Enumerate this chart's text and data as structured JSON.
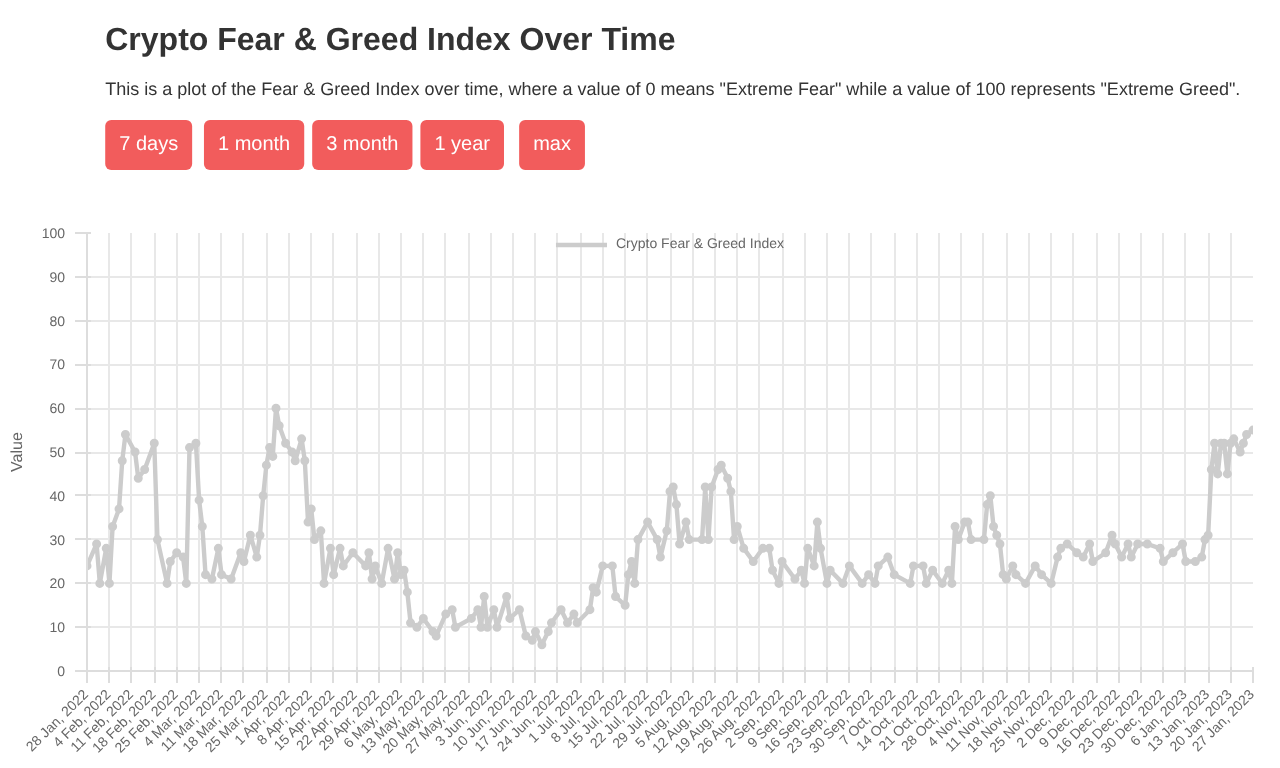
{
  "chart_data": {
    "type": "line",
    "title": "Crypto Fear & Greed Index Over Time",
    "subtitle": "This is a plot of the Fear & Greed Index over time, where a value of 0 means \"Extreme Fear\" while a value of 100 represents \"Extreme Greed\".",
    "annotations": [
      "7 days",
      "1 month",
      "3 month",
      "1 year",
      "max"
    ],
    "ylabel": "Value",
    "xlim": [
      "2022-01-28",
      "2023-01-27"
    ],
    "ylim": [
      0,
      100
    ],
    "yticks": [
      0,
      10,
      20,
      30,
      40,
      50,
      60,
      70,
      80,
      90,
      100
    ],
    "xticks": [
      {
        "value": "2022-01-28",
        "label": "28 Jan, 2022"
      },
      {
        "value": "2022-02-04",
        "label": "4 Feb, 2022"
      },
      {
        "value": "2022-02-11",
        "label": "11 Feb, 2022"
      },
      {
        "value": "2022-02-18",
        "label": "18 Feb, 2022"
      },
      {
        "value": "2022-02-25",
        "label": "25 Feb, 2022"
      },
      {
        "value": "2022-03-04",
        "label": "4 Mar, 2022"
      },
      {
        "value": "2022-03-11",
        "label": "11 Mar, 2022"
      },
      {
        "value": "2022-03-18",
        "label": "18 Mar, 2022"
      },
      {
        "value": "2022-03-25",
        "label": "25 Mar, 2022"
      },
      {
        "value": "2022-04-01",
        "label": "1 Apr, 2022"
      },
      {
        "value": "2022-04-08",
        "label": "8 Apr, 2022"
      },
      {
        "value": "2022-04-15",
        "label": "15 Apr, 2022"
      },
      {
        "value": "2022-04-22",
        "label": "22 Apr, 2022"
      },
      {
        "value": "2022-04-29",
        "label": "29 Apr, 2022"
      },
      {
        "value": "2022-05-06",
        "label": "6 May, 2022"
      },
      {
        "value": "2022-05-13",
        "label": "13 May, 2022"
      },
      {
        "value": "2022-05-20",
        "label": "20 May, 2022"
      },
      {
        "value": "2022-05-27",
        "label": "27 May, 2022"
      },
      {
        "value": "2022-06-03",
        "label": "3 Jun, 2022"
      },
      {
        "value": "2022-06-10",
        "label": "10 Jun, 2022"
      },
      {
        "value": "2022-06-17",
        "label": "17 Jun, 2022"
      },
      {
        "value": "2022-06-24",
        "label": "24 Jun, 2022"
      },
      {
        "value": "2022-07-01",
        "label": "1 Jul, 2022"
      },
      {
        "value": "2022-07-08",
        "label": "8 Jul, 2022"
      },
      {
        "value": "2022-07-15",
        "label": "15 Jul, 2022"
      },
      {
        "value": "2022-07-22",
        "label": "22 Jul, 2022"
      },
      {
        "value": "2022-07-29",
        "label": "29 Jul, 2022"
      },
      {
        "value": "2022-08-05",
        "label": "5 Aug, 2022"
      },
      {
        "value": "2022-08-12",
        "label": "12 Aug, 2022"
      },
      {
        "value": "2022-08-19",
        "label": "19 Aug, 2022"
      },
      {
        "value": "2022-08-26",
        "label": "26 Aug, 2022"
      },
      {
        "value": "2022-09-02",
        "label": "2 Sep, 2022"
      },
      {
        "value": "2022-09-09",
        "label": "9 Sep, 2022"
      },
      {
        "value": "2022-09-16",
        "label": "16 Sep, 2022"
      },
      {
        "value": "2022-09-23",
        "label": "23 Sep, 2022"
      },
      {
        "value": "2022-09-30",
        "label": "30 Sep, 2022"
      },
      {
        "value": "2022-10-07",
        "label": "7 Oct, 2022"
      },
      {
        "value": "2022-10-14",
        "label": "14 Oct, 2022"
      },
      {
        "value": "2022-10-21",
        "label": "21 Oct, 2022"
      },
      {
        "value": "2022-10-28",
        "label": "28 Oct, 2022"
      },
      {
        "value": "2022-11-04",
        "label": "4 Nov, 2022"
      },
      {
        "value": "2022-11-11",
        "label": "11 Nov, 2022"
      },
      {
        "value": "2022-11-18",
        "label": "18 Nov, 2022"
      },
      {
        "value": "2022-11-25",
        "label": "25 Nov, 2022"
      },
      {
        "value": "2022-12-02",
        "label": "2 Dec, 2022"
      },
      {
        "value": "2022-12-09",
        "label": "9 Dec, 2022"
      },
      {
        "value": "2022-12-16",
        "label": "16 Dec, 2022"
      },
      {
        "value": "2022-12-23",
        "label": "23 Dec, 2022"
      },
      {
        "value": "2022-12-30",
        "label": "30 Dec, 2022"
      },
      {
        "value": "2023-01-06",
        "label": "6 Jan, 2023"
      },
      {
        "value": "2023-01-13",
        "label": "13 Jan, 2023"
      },
      {
        "value": "2023-01-20",
        "label": "20 Jan, 2023"
      },
      {
        "value": "2023-01-27",
        "label": "27 Jan, 2023"
      }
    ],
    "grid": true,
    "legend": "top",
    "marker": "circle",
    "line_style": "solid",
    "series": [
      {
        "name": "Crypto Fear & Greed Index",
        "color": "#cccccc",
        "x": [
          "2022-01-28",
          "2022-01-31",
          "2022-02-01",
          "2022-02-03",
          "2022-02-04",
          "2022-02-05",
          "2022-02-07",
          "2022-02-08",
          "2022-02-09",
          "2022-02-12",
          "2022-02-13",
          "2022-02-15",
          "2022-02-18",
          "2022-02-19",
          "2022-02-22",
          "2022-02-23",
          "2022-02-25",
          "2022-02-27",
          "2022-02-28",
          "2022-03-01",
          "2022-03-03",
          "2022-03-04",
          "2022-03-05",
          "2022-03-06",
          "2022-03-08",
          "2022-03-10",
          "2022-03-11",
          "2022-03-14",
          "2022-03-17",
          "2022-03-18",
          "2022-03-20",
          "2022-03-22",
          "2022-03-23",
          "2022-03-24",
          "2022-03-25",
          "2022-03-26",
          "2022-03-27",
          "2022-03-28",
          "2022-03-29",
          "2022-03-31",
          "2022-04-02",
          "2022-04-03",
          "2022-04-05",
          "2022-04-06",
          "2022-04-07",
          "2022-04-08",
          "2022-04-09",
          "2022-04-11",
          "2022-04-12",
          "2022-04-14",
          "2022-04-15",
          "2022-04-17",
          "2022-04-18",
          "2022-04-21",
          "2022-04-25",
          "2022-04-26",
          "2022-04-27",
          "2022-04-28",
          "2022-04-30",
          "2022-05-02",
          "2022-05-04",
          "2022-05-05",
          "2022-05-06",
          "2022-05-07",
          "2022-05-08",
          "2022-05-09",
          "2022-05-11",
          "2022-05-13",
          "2022-05-16",
          "2022-05-17",
          "2022-05-20",
          "2022-05-22",
          "2022-05-23",
          "2022-05-28",
          "2022-05-30",
          "2022-05-31",
          "2022-06-01",
          "2022-06-02",
          "2022-06-04",
          "2022-06-05",
          "2022-06-08",
          "2022-06-09",
          "2022-06-12",
          "2022-06-14",
          "2022-06-16",
          "2022-06-17",
          "2022-06-19",
          "2022-06-21",
          "2022-06-22",
          "2022-06-25",
          "2022-06-27",
          "2022-06-29",
          "2022-06-30",
          "2022-07-04",
          "2022-07-05",
          "2022-07-06",
          "2022-07-08",
          "2022-07-11",
          "2022-07-12",
          "2022-07-15",
          "2022-07-16",
          "2022-07-17",
          "2022-07-18",
          "2022-07-19",
          "2022-07-22",
          "2022-07-25",
          "2022-07-26",
          "2022-07-28",
          "2022-07-29",
          "2022-07-30",
          "2022-07-31",
          "2022-08-01",
          "2022-08-03",
          "2022-08-04",
          "2022-08-08",
          "2022-08-09",
          "2022-08-10",
          "2022-08-11",
          "2022-08-13",
          "2022-08-14",
          "2022-08-16",
          "2022-08-17",
          "2022-08-18",
          "2022-08-19",
          "2022-08-21",
          "2022-08-24",
          "2022-08-27",
          "2022-08-29",
          "2022-08-30",
          "2022-09-01",
          "2022-09-02",
          "2022-09-06",
          "2022-09-08",
          "2022-09-09",
          "2022-09-10",
          "2022-09-12",
          "2022-09-13",
          "2022-09-14",
          "2022-09-16",
          "2022-09-17",
          "2022-09-21",
          "2022-09-23",
          "2022-09-27",
          "2022-09-29",
          "2022-10-01",
          "2022-10-02",
          "2022-10-05",
          "2022-10-07",
          "2022-10-12",
          "2022-10-13",
          "2022-10-16",
          "2022-10-17",
          "2022-10-19",
          "2022-10-22",
          "2022-10-24",
          "2022-10-25",
          "2022-10-26",
          "2022-10-27",
          "2022-10-29",
          "2022-10-30",
          "2022-10-31",
          "2022-11-04",
          "2022-11-05",
          "2022-11-06",
          "2022-11-07",
          "2022-11-08",
          "2022-11-09",
          "2022-11-10",
          "2022-11-11",
          "2022-11-13",
          "2022-11-14",
          "2022-11-17",
          "2022-11-20",
          "2022-11-22",
          "2022-11-25",
          "2022-11-27",
          "2022-11-28",
          "2022-11-30",
          "2022-12-03",
          "2022-12-05",
          "2022-12-07",
          "2022-12-08",
          "2022-12-12",
          "2022-12-14",
          "2022-12-15",
          "2022-12-17",
          "2022-12-19",
          "2022-12-20",
          "2022-12-22",
          "2022-12-25",
          "2022-12-29",
          "2022-12-30",
          "2023-01-02",
          "2023-01-05",
          "2023-01-06",
          "2023-01-09",
          "2023-01-11",
          "2023-01-12",
          "2023-01-13",
          "2023-01-14",
          "2023-01-15",
          "2023-01-16",
          "2023-01-17",
          "2023-01-18",
          "2023-01-19",
          "2023-01-20",
          "2023-01-21",
          "2023-01-23",
          "2023-01-24",
          "2023-01-25",
          "2023-01-27"
        ],
        "values": [
          24,
          29,
          20,
          28,
          20,
          33,
          37,
          48,
          54,
          50,
          44,
          46,
          52,
          30,
          20,
          25,
          27,
          26,
          20,
          51,
          52,
          39,
          33,
          22,
          21,
          28,
          22,
          21,
          27,
          25,
          31,
          26,
          31,
          40,
          47,
          51,
          49,
          60,
          56,
          52,
          50,
          48,
          53,
          48,
          34,
          37,
          30,
          32,
          20,
          28,
          22,
          28,
          24,
          27,
          24,
          27,
          21,
          24,
          20,
          28,
          21,
          27,
          22,
          23,
          18,
          11,
          10,
          12,
          9,
          8,
          13,
          14,
          10,
          12,
          14,
          10,
          17,
          10,
          14,
          10,
          17,
          12,
          14,
          8,
          7,
          9,
          6,
          9,
          11,
          14,
          11,
          13,
          11,
          14,
          19,
          18,
          24,
          24,
          17,
          15,
          22,
          25,
          20,
          30,
          34,
          30,
          26,
          32,
          41,
          42,
          38,
          29,
          34,
          30,
          30,
          42,
          30,
          42,
          46,
          47,
          44,
          41,
          30,
          33,
          28,
          25,
          28,
          28,
          23,
          20,
          25,
          21,
          23,
          20,
          28,
          24,
          34,
          28,
          20,
          23,
          20,
          24,
          20,
          22,
          20,
          24,
          26,
          22,
          20,
          24,
          24,
          20,
          23,
          20,
          23,
          20,
          33,
          30,
          34,
          34,
          30,
          30,
          38,
          40,
          33,
          31,
          29,
          22,
          21,
          24,
          22,
          20,
          24,
          22,
          20,
          26,
          28,
          29,
          27,
          26,
          29,
          25,
          27,
          31,
          29,
          26,
          29,
          26,
          29,
          29,
          28,
          25,
          27,
          29,
          25,
          25,
          26,
          30,
          31,
          46,
          52,
          45,
          52,
          52,
          45,
          52,
          53,
          50,
          52,
          54,
          55
        ]
      }
    ]
  }
}
